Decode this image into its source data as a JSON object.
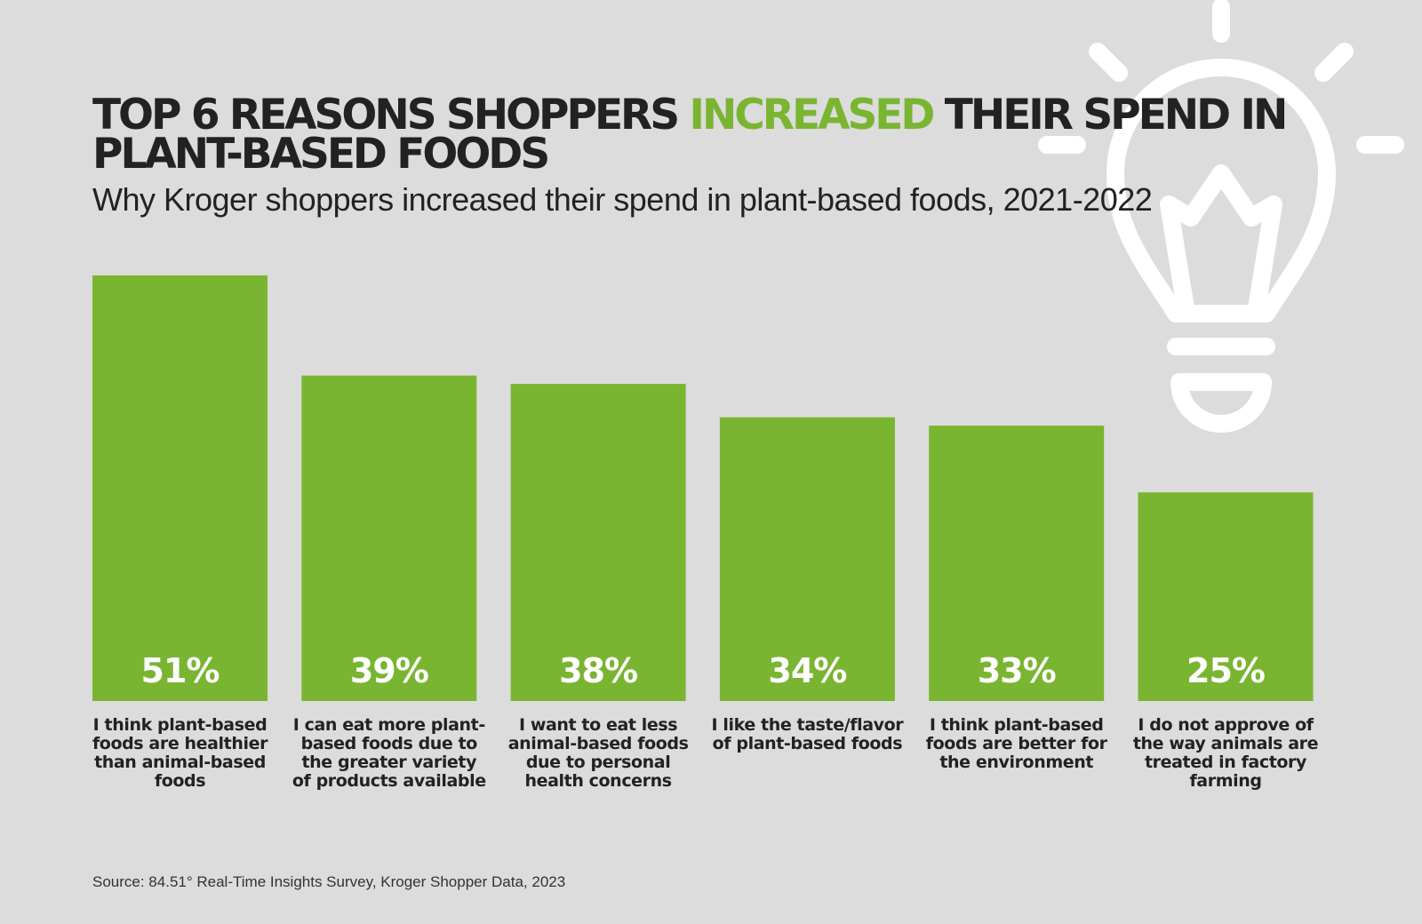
{
  "title": {
    "part1": "TOP 6 REASONS SHOPPERS ",
    "highlight": "INCREASED",
    "part2": " THEIR SPEND IN PLANT-BASED FOODS"
  },
  "subtitle": "Why Kroger shoppers increased their spend in plant-based foods, 2021-2022",
  "source": "Source: 84.51° Real-Time Insights Survey, Kroger Shopper Data, 2023",
  "icon": "lightbulb-icon",
  "colors": {
    "background": "#dcdcdc",
    "bar": "#7ab532",
    "highlight": "#7ab532",
    "text": "#222222",
    "bar_text": "#ffffff",
    "icon": "#ffffff"
  },
  "chart_data": {
    "type": "bar",
    "title": "TOP 6 REASONS SHOPPERS INCREASED THEIR SPEND IN PLANT-BASED FOODS",
    "subtitle": "Why Kroger shoppers increased their spend in plant-based foods, 2021-2022",
    "categories": [
      "I think plant-based foods are healthier than animal-based foods",
      "I can eat more plant-based foods due to the greater variety of products available",
      "I want to eat less animal-based foods due to personal health concerns",
      "I like the taste/flavor of plant-based foods",
      "I think plant-based foods are better for the environment",
      "I do not approve of the way animals are treated in factory farming"
    ],
    "values": [
      51,
      39,
      38,
      34,
      33,
      25
    ],
    "value_labels": [
      "51%",
      "39%",
      "38%",
      "34%",
      "33%",
      "25%"
    ],
    "unit": "%",
    "ylim": [
      0,
      51
    ],
    "grid": false,
    "axes_visible": false
  }
}
